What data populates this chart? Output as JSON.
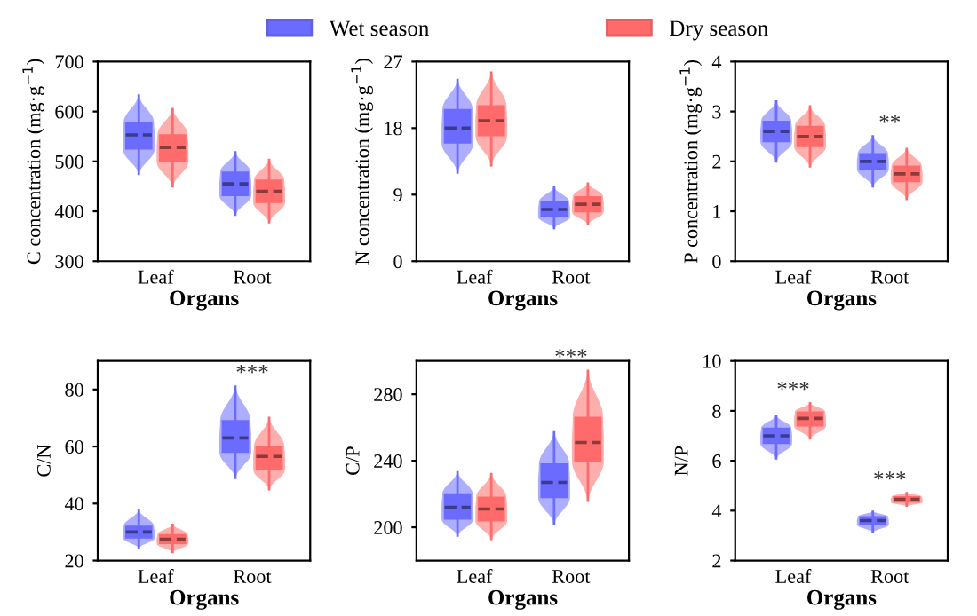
{
  "chart_data": [
    {
      "type": "box",
      "categories": [
        "Leaf",
        "Root"
      ],
      "xlabel": "Organs",
      "ylabel": "C concentration (mg·g$^{−1}$)",
      "ylim": [
        300,
        700
      ],
      "yticks": [
        300,
        400,
        500,
        600,
        700
      ],
      "legend": "top",
      "series": [
        {
          "name": "Wet season",
          "color": "#6b6bff",
          "boxes": [
            {
              "low": 475,
              "q1": 525,
              "median": 553,
              "q3": 578,
              "high": 632
            },
            {
              "low": 393,
              "q1": 432,
              "median": 455,
              "q3": 478,
              "high": 518
            }
          ]
        },
        {
          "name": "Dry season",
          "color": "#ff6b6b",
          "boxes": [
            {
              "low": 450,
              "q1": 500,
              "median": 528,
              "q3": 553,
              "high": 605
            },
            {
              "low": 378,
              "q1": 418,
              "median": 440,
              "q3": 462,
              "high": 503
            }
          ]
        }
      ]
    },
    {
      "type": "box",
      "categories": [
        "Leaf",
        "Root"
      ],
      "xlabel": "Organs",
      "ylabel": "N concentration (mg·g$^{−1}$)",
      "ylim": [
        0,
        27
      ],
      "yticks": [
        0,
        9,
        18,
        27
      ],
      "series": [
        {
          "color": "#6b6bff",
          "boxes": [
            {
              "low": 12,
              "q1": 16,
              "median": 18,
              "q3": 20.5,
              "high": 24.5
            },
            {
              "low": 4.5,
              "q1": 6,
              "median": 7,
              "q3": 8,
              "high": 10
            }
          ]
        },
        {
          "color": "#ff6b6b",
          "boxes": [
            {
              "low": 13,
              "q1": 17,
              "median": 19,
              "q3": 21,
              "high": 25.5
            },
            {
              "low": 5,
              "q1": 6.7,
              "median": 7.7,
              "q3": 8.7,
              "high": 10.5
            }
          ]
        }
      ]
    },
    {
      "type": "box",
      "categories": [
        "Leaf",
        "Root"
      ],
      "xlabel": "Organs",
      "ylabel": "P concentration (mg·g$^{−1}$)",
      "ylim": [
        0,
        4
      ],
      "yticks": [
        0,
        1,
        2,
        3,
        4
      ],
      "annotations": [
        "**"
      ],
      "series": [
        {
          "color": "#6b6bff",
          "boxes": [
            {
              "low": 2.0,
              "q1": 2.4,
              "median": 2.6,
              "q3": 2.8,
              "high": 3.2
            },
            {
              "low": 1.5,
              "q1": 1.85,
              "median": 2.0,
              "q3": 2.15,
              "high": 2.5
            }
          ]
        },
        {
          "color": "#ff6b6b",
          "boxes": [
            {
              "low": 1.9,
              "q1": 2.3,
              "median": 2.5,
              "q3": 2.7,
              "high": 3.1
            },
            {
              "low": 1.25,
              "q1": 1.6,
              "median": 1.75,
              "q3": 1.9,
              "high": 2.25
            }
          ]
        }
      ]
    },
    {
      "type": "box",
      "categories": [
        "Leaf",
        "Root"
      ],
      "xlabel": "Organs",
      "ylabel": "C/N",
      "ylim": [
        20,
        90
      ],
      "yticks": [
        20,
        40,
        60,
        80
      ],
      "annotations": [
        "***"
      ],
      "series": [
        {
          "color": "#6b6bff",
          "boxes": [
            {
              "low": 24.5,
              "q1": 28,
              "median": 30,
              "q3": 32,
              "high": 37.5
            },
            {
              "low": 49,
              "q1": 58,
              "median": 63,
              "q3": 69,
              "high": 81
            }
          ]
        },
        {
          "color": "#ff6b6b",
          "boxes": [
            {
              "low": 23,
              "q1": 26,
              "median": 27.5,
              "q3": 29,
              "high": 32.5
            },
            {
              "low": 45,
              "q1": 52,
              "median": 56.5,
              "q3": 60,
              "high": 70
            }
          ]
        }
      ]
    },
    {
      "type": "box",
      "categories": [
        "Leaf",
        "Root"
      ],
      "xlabel": "Organs",
      "ylabel": "C/P",
      "ylim": [
        180,
        300
      ],
      "yticks": [
        200,
        240,
        280
      ],
      "annotations": [
        "***"
      ],
      "series": [
        {
          "color": "#6b6bff",
          "boxes": [
            {
              "low": 195,
              "q1": 205,
              "median": 212,
              "q3": 220,
              "high": 233
            },
            {
              "low": 202,
              "q1": 218,
              "median": 227,
              "q3": 238,
              "high": 257
            }
          ]
        },
        {
          "color": "#ff6b6b",
          "boxes": [
            {
              "low": 193,
              "q1": 204,
              "median": 211,
              "q3": 218,
              "high": 232
            },
            {
              "low": 216,
              "q1": 240,
              "median": 251,
              "q3": 266,
              "high": 294
            }
          ]
        }
      ]
    },
    {
      "type": "box",
      "categories": [
        "Leaf",
        "Root"
      ],
      "xlabel": "Organs",
      "ylabel": "N/P",
      "ylim": [
        2,
        10
      ],
      "yticks": [
        2,
        4,
        6,
        8,
        10
      ],
      "annotations": [
        "***",
        "***"
      ],
      "series": [
        {
          "color": "#6b6bff",
          "boxes": [
            {
              "low": 6.1,
              "q1": 6.7,
              "median": 7.0,
              "q3": 7.3,
              "high": 7.8
            },
            {
              "low": 3.15,
              "q1": 3.45,
              "median": 3.6,
              "q3": 3.75,
              "high": 3.95
            }
          ]
        },
        {
          "color": "#ff6b6b",
          "boxes": [
            {
              "low": 6.9,
              "q1": 7.4,
              "median": 7.7,
              "q3": 7.95,
              "high": 8.3
            },
            {
              "low": 4.2,
              "q1": 4.35,
              "median": 4.45,
              "q3": 4.55,
              "high": 4.7
            }
          ]
        }
      ]
    }
  ]
}
